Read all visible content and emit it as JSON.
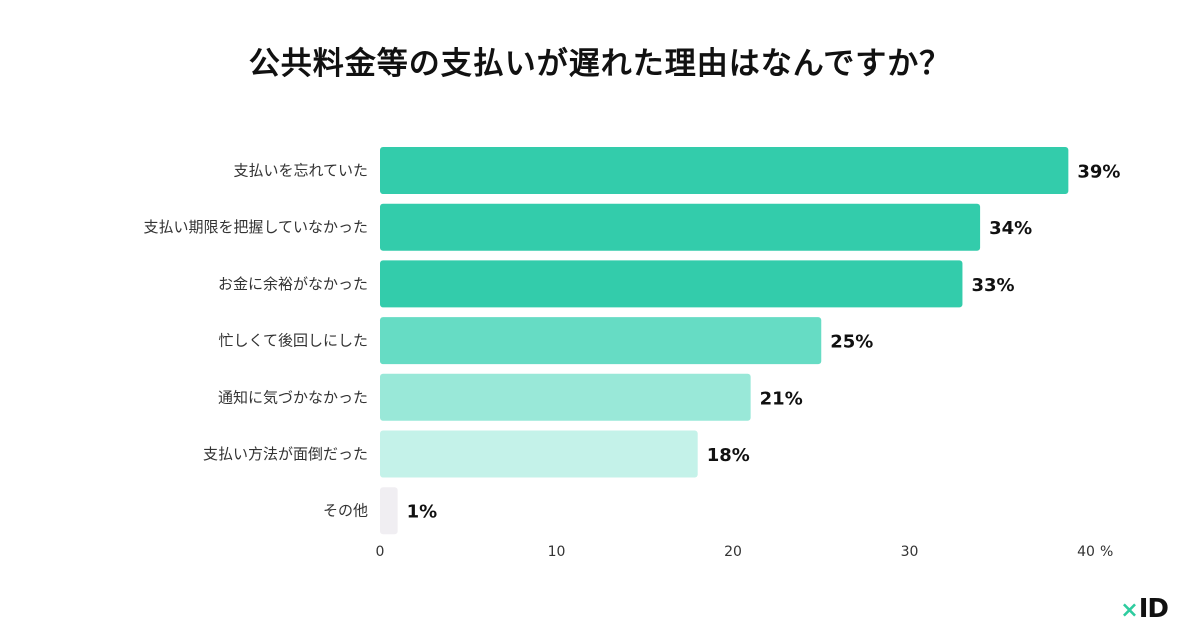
{
  "chart_data": {
    "type": "bar",
    "orientation": "horizontal",
    "title": "公共料金等の支払いが遅れた理由はなんですか？",
    "categories": [
      "支払いを忘れていた",
      "支払い期限を把握していなかった",
      "お金に余裕がなかった",
      "忙しくて後回しにした",
      "通知に気づかなかった",
      "支払い方法が面倒だった",
      "その他"
    ],
    "values": [
      39,
      34,
      33,
      25,
      21,
      18,
      1
    ],
    "value_labels": [
      "39%",
      "34%",
      "33%",
      "25%",
      "21%",
      "18%",
      "1%"
    ],
    "bar_colors": [
      "#33ccab",
      "#33ccab",
      "#33ccab",
      "#66dcc4",
      "#99e8d8",
      "#c4f2e9",
      "#f0eef2"
    ],
    "xlim": [
      0,
      40
    ],
    "x_ticks": [
      "0",
      "10",
      "20",
      "30",
      "40"
    ],
    "x_unit": "%",
    "grid": false,
    "legend": "none"
  },
  "brand": {
    "mark": "×",
    "name": "ID"
  }
}
